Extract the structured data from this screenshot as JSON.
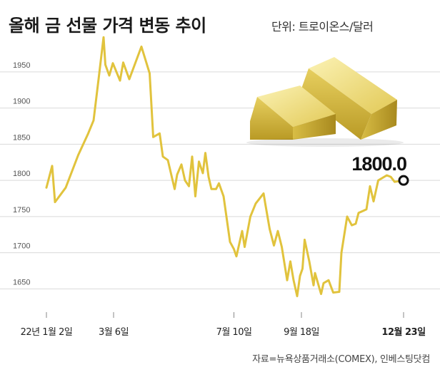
{
  "title": "올해 금 선물 가격 변동 추이",
  "unit": "단위: 트로이온스/달러",
  "source": "자료=뉴욕상품거래소(COMEX), 인베스팅닷컴",
  "chart_data": {
    "type": "line",
    "title": "올해 금 선물 가격 변동 추이",
    "ylim": [
      1610,
      2010
    ],
    "xlim": [
      0,
      100
    ],
    "yticks": [
      1650,
      1700,
      1750,
      1800,
      1850,
      1900,
      1950
    ],
    "grid": "horizontal",
    "xticks": [
      {
        "label": "22년 1월 2일",
        "x": 0,
        "bold": false
      },
      {
        "label": "3월 6일",
        "x": 18.8,
        "bold": false
      },
      {
        "label": "7월 10일",
        "x": 52.5,
        "bold": false
      },
      {
        "label": "9월 18일",
        "x": 71.4,
        "bold": false
      },
      {
        "label": "12월 23일",
        "x": 100,
        "bold": true
      }
    ],
    "end_label": "1800.0",
    "colors": {
      "line": "#e1c33d",
      "marker": "#111111"
    },
    "series": [
      {
        "x": [
          0,
          1.6,
          2.4,
          5.4,
          8.9,
          11.7,
          13.2,
          14.6,
          16.0,
          16.5,
          17.6,
          18.6,
          20.6,
          21.5,
          23.2,
          26.6,
          28.9,
          29.9,
          31.7,
          32.6,
          34.0,
          35.9,
          36.6,
          37.8,
          38.8,
          39.9,
          40.8,
          41.7,
          42.7,
          43.8,
          44.5,
          45.4,
          46.2,
          47.5,
          48.3,
          49.6,
          51.4,
          52.5,
          53.2,
          54.8,
          55.5,
          57.1,
          58.6,
          60.8,
          61.2,
          62.5,
          63.7,
          64.8,
          65.9,
          67.4,
          68.3,
          69.2,
          70.2,
          71.0,
          71.7,
          72.3,
          73.6,
          74.8,
          75.2,
          76.9,
          77.6,
          79.0,
          80.3,
          82.0,
          82.6,
          84.2,
          85.5,
          86.6,
          87.4,
          89.6,
          90.6,
          91.6,
          92.9,
          95.3,
          96.4,
          97.5,
          100
        ],
        "y": [
          1790,
          1820,
          1770,
          1790,
          1835,
          1865,
          1883,
          1940,
          1998,
          1960,
          1945,
          1962,
          1938,
          1963,
          1940,
          1985,
          1948,
          1860,
          1865,
          1833,
          1828,
          1788,
          1808,
          1822,
          1800,
          1792,
          1833,
          1778,
          1826,
          1810,
          1838,
          1805,
          1788,
          1788,
          1796,
          1778,
          1715,
          1705,
          1695,
          1730,
          1708,
          1750,
          1768,
          1782,
          1770,
          1733,
          1710,
          1730,
          1708,
          1662,
          1688,
          1662,
          1640,
          1668,
          1678,
          1718,
          1688,
          1655,
          1672,
          1643,
          1658,
          1662,
          1645,
          1646,
          1700,
          1750,
          1738,
          1740,
          1755,
          1760,
          1792,
          1771,
          1800,
          1807,
          1805,
          1798,
          1800
        ]
      }
    ]
  }
}
